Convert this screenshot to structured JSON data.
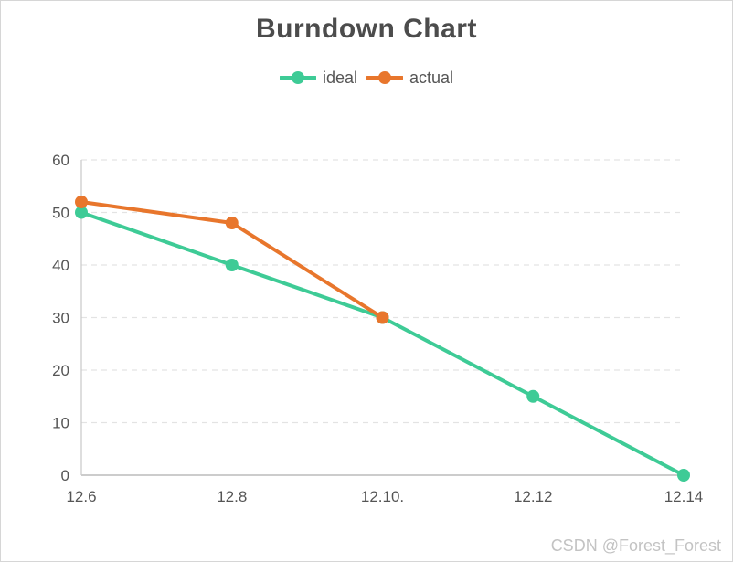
{
  "watermark": "CSDN @Forest_Forest",
  "chart_data": {
    "type": "line",
    "title": "Burndown Chart",
    "categories": [
      "12.6",
      "12.8",
      "12.10.",
      "12.12",
      "12.14"
    ],
    "series": [
      {
        "name": "ideal",
        "color": "#3ecb96",
        "values": [
          50,
          40,
          30,
          15,
          0
        ]
      },
      {
        "name": "actual",
        "color": "#e8762c",
        "values": [
          52,
          48,
          30
        ]
      }
    ],
    "xlabel": "",
    "ylabel": "",
    "ylim": [
      0,
      60
    ],
    "yticks": [
      0,
      10,
      20,
      30,
      40,
      50,
      60
    ],
    "grid": "horizontal-dashed",
    "legend_position": "top-center",
    "legend": [
      "ideal",
      "actual"
    ],
    "axis_color": "#cccccc",
    "grid_color": "#e3e3e3",
    "text_color": "#555555"
  }
}
